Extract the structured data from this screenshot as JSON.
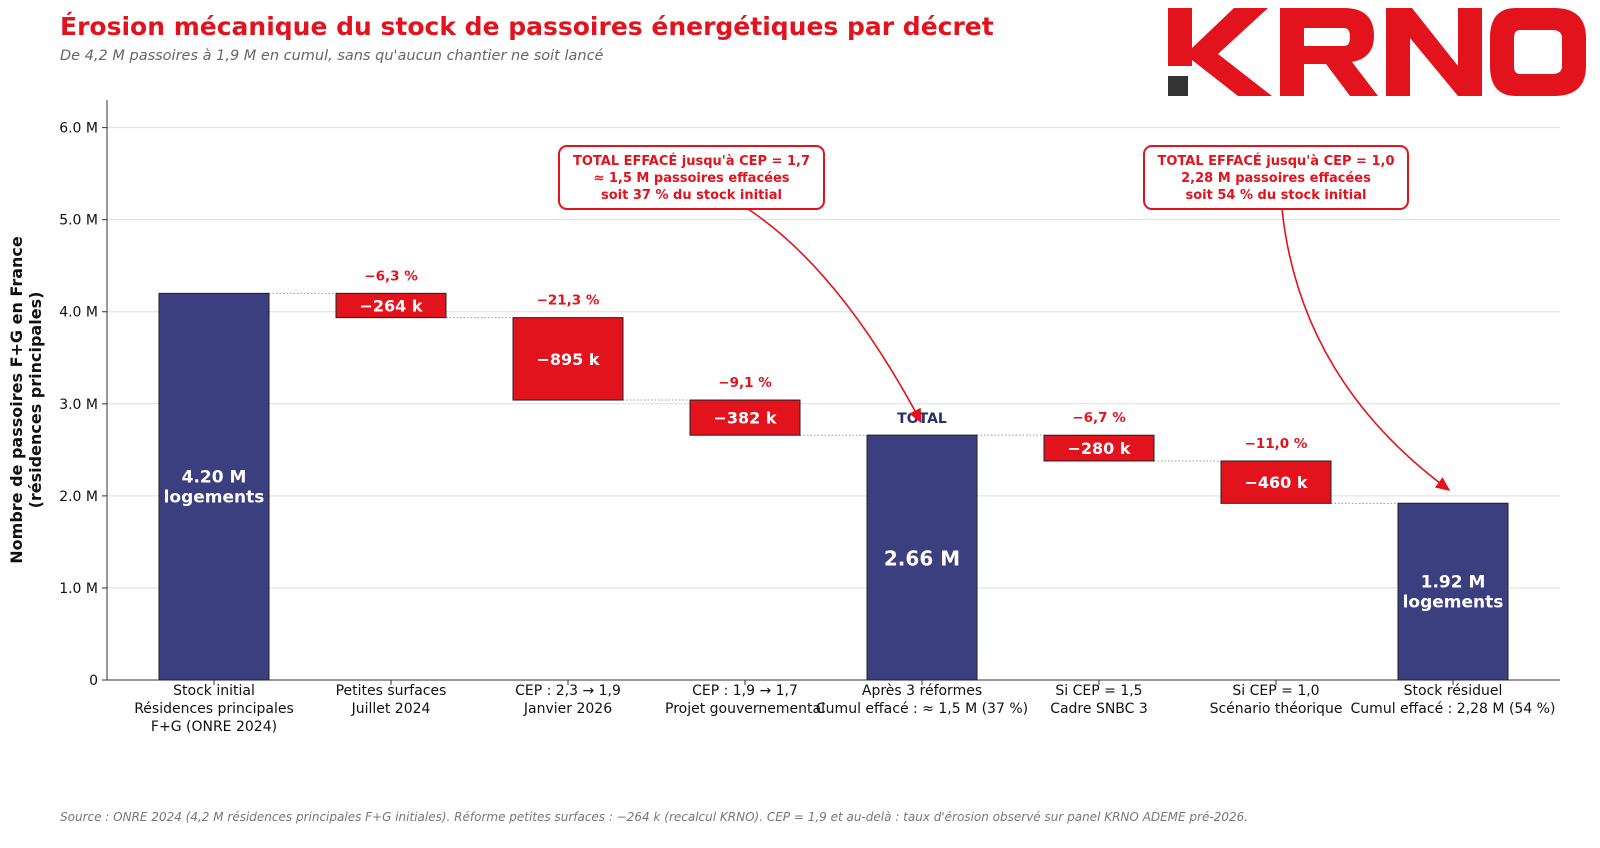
{
  "header": {
    "title": "Érosion mécanique du stock de passoires énergétiques par décret",
    "subtitle": "De 4,2 M passoires à 1,9 M en cumul, sans qu'aucun chantier ne soit lancé"
  },
  "logo": {
    "text": "KRNO",
    "color": "#e3131e",
    "mark_color": "#333333"
  },
  "footer": {
    "source": "Source : ONRE 2024 (4,2 M résidences principales F+G initiales). Réforme petites surfaces : −264 k (recalcul KRNO). CEP = 1,9 et au-delà : taux d'érosion observé sur panel KRNO ADEME pré-2026."
  },
  "colors": {
    "total": "#3b3f7f",
    "decrease": "#e3131e",
    "accent": "#e3131e",
    "total_label": "#2a2e6e"
  },
  "chart_data": {
    "type": "waterfall",
    "ylabel": "Nombre de passoires F+G en France\n(résidences principales)",
    "ylim": [
      0,
      6.3
    ],
    "yticks": [
      0,
      1,
      2,
      3,
      4,
      5,
      6
    ],
    "ytick_labels": [
      "0",
      "1.0 M",
      "2.0 M",
      "3.0 M",
      "4.0 M",
      "5.0 M",
      "6.0 M"
    ],
    "grid": true,
    "bars": [
      {
        "kind": "total",
        "value": 4.2,
        "label": "4.20 M\nlogements",
        "category": "Stock initial\nRésidences principales\nF+G (ONRE 2024)"
      },
      {
        "kind": "decrease",
        "from": 4.2,
        "to": 3.936,
        "label": "−264 k",
        "pct": "−6,3 %",
        "category": "Petites surfaces\nJuillet 2024"
      },
      {
        "kind": "decrease",
        "from": 3.936,
        "to": 3.041,
        "label": "−895 k",
        "pct": "−21,3 %",
        "category": "CEP : 2,3 → 1,9\nJanvier 2026"
      },
      {
        "kind": "decrease",
        "from": 3.041,
        "to": 2.659,
        "label": "−382 k",
        "pct": "−9,1 %",
        "category": "CEP : 1,9 → 1,7\nProjet gouvernemental"
      },
      {
        "kind": "total",
        "value": 2.66,
        "label": "2.66 M",
        "top_label": "TOTAL",
        "category": "Après 3 réformes\nCumul effacé : ≈ 1,5 M (37 %)"
      },
      {
        "kind": "decrease",
        "from": 2.659,
        "to": 2.379,
        "label": "−280 k",
        "pct": "−6,7 %",
        "category": "Si CEP = 1,5\nCadre SNBC 3"
      },
      {
        "kind": "decrease",
        "from": 2.379,
        "to": 1.919,
        "label": "−460 k",
        "pct": "−11,0 %",
        "category": "Si CEP = 1,0\nScénario théorique"
      },
      {
        "kind": "total",
        "value": 1.92,
        "label": "1.92 M\nlogements",
        "category": "Stock résiduel\nCumul effacé : 2,28 M (54 %)"
      }
    ],
    "annotations": [
      {
        "text": "TOTAL EFFACÉ jusqu'à CEP = 1,7\n≈ 1,5 M passoires effacées\nsoit 37 % du stock initial",
        "target_bar": 4
      },
      {
        "text": "TOTAL EFFACÉ jusqu'à CEP = 1,0\n2,28 M passoires effacées\nsoit 54 % du stock initial",
        "target_bar": 7
      }
    ]
  }
}
